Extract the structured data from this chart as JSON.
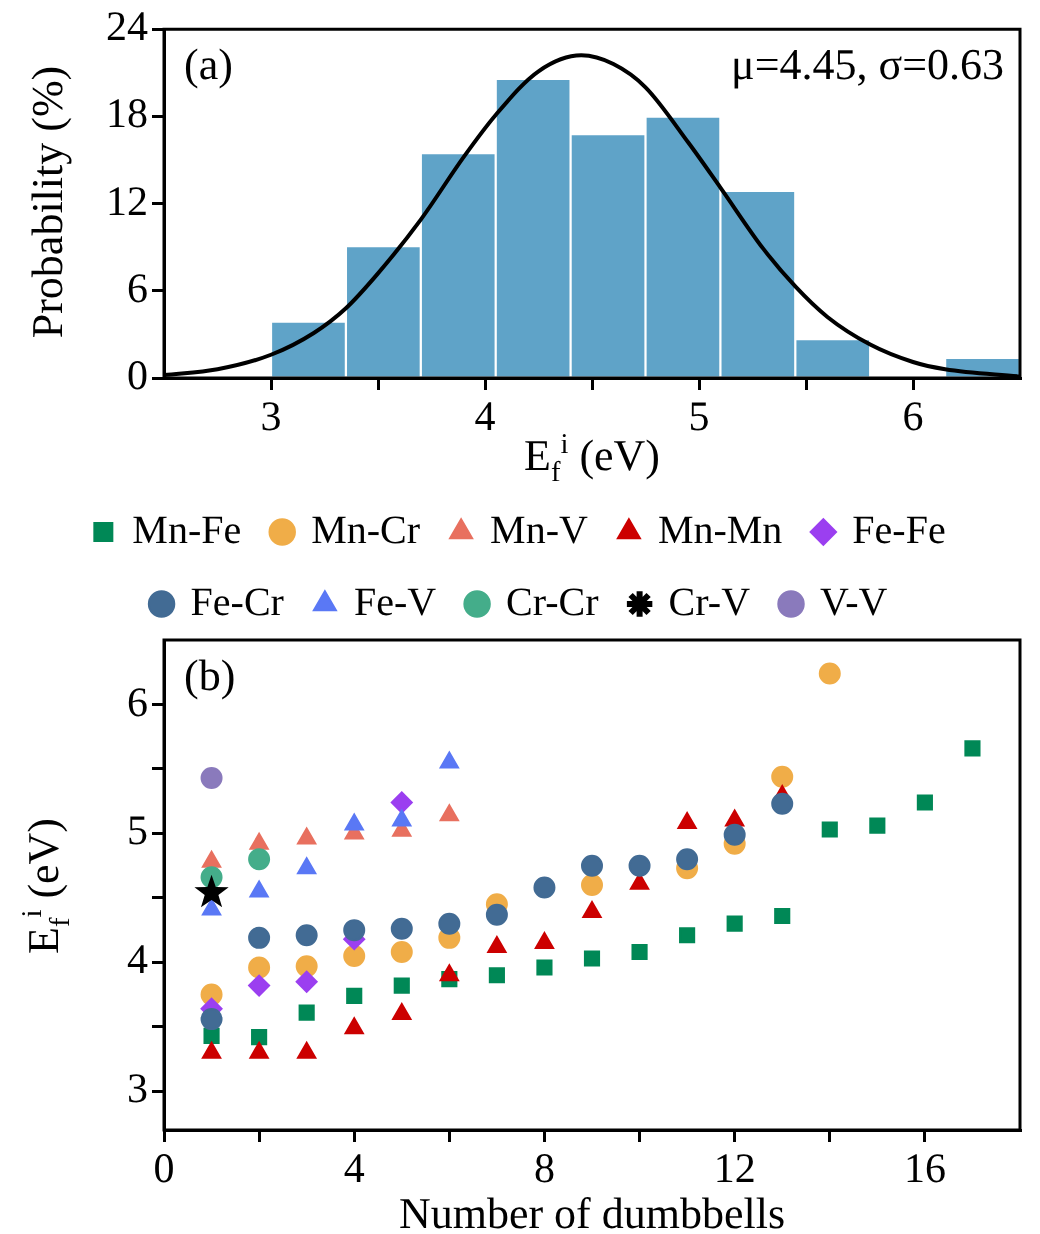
{
  "chart_data": [
    {
      "type": "histogram",
      "bins": [
        3,
        3.35,
        3.7,
        4.05,
        4.4,
        4.75,
        5.1,
        5.45,
        5.8,
        6.15,
        6.5
      ],
      "values": [
        3.8,
        9.0,
        15.4,
        20.5,
        16.7,
        17.9,
        12.8,
        2.6,
        0,
        1.3
      ],
      "color": "#5fa3c8",
      "series": [
        {
          "type": "line",
          "color": "#000000",
          "x": [
            2.5,
            2.75,
            3.0,
            3.2,
            3.35,
            3.5,
            3.7,
            3.9,
            4.05,
            4.25,
            4.45,
            4.6,
            4.75,
            4.95,
            5.1,
            5.3,
            5.45,
            5.6,
            5.8,
            6.0,
            6.15,
            6.5
          ],
          "values": [
            0.2,
            0.6,
            1.6,
            3.1,
            4.8,
            7.2,
            10.9,
            15.2,
            18.1,
            21.1,
            22.2,
            21.6,
            20.0,
            16.2,
            13.1,
            8.9,
            6.3,
            4.2,
            2.3,
            1.1,
            0.6,
            0.1
          ]
        }
      ],
      "xlim": [
        2.5,
        6.5
      ],
      "xticks": [
        3,
        {
          "value": 3.5,
          "label": null
        },
        4,
        {
          "value": 4.5,
          "label": null
        },
        5,
        {
          "value": 5.5,
          "label": null
        },
        6
      ],
      "ylim": [
        0,
        24
      ],
      "yticks": [
        0,
        6,
        12,
        18,
        24
      ],
      "xlabel": "E$_{f}$$^{i}$ (eV)",
      "ylabel": "Probability (%)",
      "annotations": [
        "(a)",
        "μ=4.45, σ=0.63"
      ],
      "grid": false,
      "legend": false
    },
    {
      "type": "scatter",
      "series": [
        {
          "name": "Mn-Fe",
          "color": "#008856",
          "marker": "square",
          "x": [
            1,
            2,
            3,
            4,
            5,
            6,
            7,
            8,
            9,
            10,
            11,
            12,
            13,
            14,
            15,
            16,
            17
          ],
          "values": [
            3.43,
            3.42,
            3.61,
            3.74,
            3.82,
            3.87,
            3.9,
            3.96,
            4.03,
            4.08,
            4.21,
            4.3,
            4.36,
            5.03,
            5.06,
            5.24,
            5.66
          ]
        },
        {
          "name": "Mn-Cr",
          "color": "#f0ad48",
          "marker": "circle",
          "x": [
            1,
            2,
            3,
            4,
            5,
            6,
            7,
            9,
            11,
            12,
            13,
            14
          ],
          "values": [
            3.75,
            3.96,
            3.97,
            4.05,
            4.08,
            4.19,
            4.45,
            4.6,
            4.73,
            4.92,
            5.44,
            6.24
          ]
        },
        {
          "name": "Mn-V",
          "color": "#e8705f",
          "marker": "triangle",
          "x": [
            1,
            2,
            3,
            4,
            5,
            6
          ],
          "values": [
            4.78,
            4.92,
            4.96,
            5.0,
            5.02,
            5.14
          ]
        },
        {
          "name": "Mn-Mn",
          "color": "#cc0000",
          "marker": "triangle",
          "x": [
            1,
            2,
            3,
            4,
            5,
            6,
            7,
            8,
            9,
            10,
            11,
            12,
            13
          ],
          "values": [
            3.3,
            3.3,
            3.3,
            3.49,
            3.6,
            3.9,
            4.12,
            4.15,
            4.39,
            4.61,
            5.08,
            5.1,
            5.29
          ]
        },
        {
          "name": "Fe-Fe",
          "color": "#9b3ff0",
          "marker": "diamond",
          "x": [
            1,
            2,
            3,
            4,
            5
          ],
          "values": [
            3.64,
            3.82,
            3.85,
            4.18,
            5.24
          ]
        },
        {
          "name": "Fe-Cr",
          "color": "#426b94",
          "marker": "circle",
          "x": [
            1,
            2,
            3,
            4,
            5,
            6,
            7,
            8,
            9,
            10,
            11,
            12,
            13
          ],
          "values": [
            3.56,
            4.19,
            4.21,
            4.25,
            4.26,
            4.3,
            4.37,
            4.58,
            4.75,
            4.75,
            4.8,
            4.99,
            5.23
          ]
        },
        {
          "name": "Fe-V",
          "color": "#5a78f5",
          "marker": "triangle",
          "x": [
            1,
            2,
            3,
            4,
            5,
            6
          ],
          "values": [
            4.41,
            4.55,
            4.73,
            5.07,
            5.1,
            5.55
          ]
        },
        {
          "name": "Cr-Cr",
          "color": "#44ad8a",
          "marker": "circle",
          "x": [
            1,
            2
          ],
          "values": [
            4.66,
            4.8
          ]
        },
        {
          "name": "Cr-V",
          "color": "#000000",
          "marker": "star",
          "x": [
            1
          ],
          "values": [
            4.54
          ]
        },
        {
          "name": "V-V",
          "color": "#8a7abc",
          "marker": "circle",
          "x": [
            1
          ],
          "values": [
            5.43
          ]
        }
      ],
      "xlim": [
        0,
        18
      ],
      "xticks": [
        0,
        {
          "value": 2,
          "label": null
        },
        4,
        {
          "value": 6,
          "label": null
        },
        8,
        {
          "value": 10,
          "label": null
        },
        12,
        {
          "value": 14,
          "label": null
        },
        16
      ],
      "ylim": [
        2.7,
        6.5
      ],
      "yticks": [
        3,
        {
          "value": 3.5,
          "label": null
        },
        4,
        {
          "value": 4.5,
          "label": null
        },
        5,
        {
          "value": 5.5,
          "label": null
        },
        6
      ],
      "xlabel": "Number of dumbbells",
      "ylabel": "E$_{f}$$^{i}$ (eV)",
      "annotations": [
        "(b)"
      ],
      "grid": false,
      "legend": "top"
    }
  ]
}
